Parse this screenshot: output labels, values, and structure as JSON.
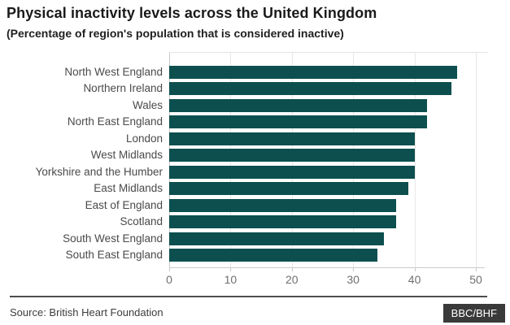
{
  "header": {
    "title": "Physical inactivity levels across the United Kingdom",
    "subtitle": "(Percentage of region's population that is considered inactive)"
  },
  "chart_data": {
    "type": "bar",
    "orientation": "horizontal",
    "title": "Physical inactivity levels across the United Kingdom",
    "subtitle": "(Percentage of region's population that is considered inactive)",
    "xlabel": "",
    "ylabel": "",
    "categories": [
      "North West England",
      "Northern Ireland",
      "Wales",
      "North East England",
      "London",
      "West Midlands",
      "Yorkshire and the Humber",
      "East Midlands",
      "East of England",
      "Scotland",
      "South West England",
      "South East England"
    ],
    "values": [
      47,
      46,
      42,
      42,
      40,
      40,
      40,
      39,
      37,
      37,
      35,
      34
    ],
    "xlim": [
      0,
      50
    ],
    "x_ticks": [
      0,
      10,
      20,
      30,
      40,
      50
    ],
    "grid": true,
    "legend": false,
    "bar_color": "#0d4f4f",
    "gridline_color": "#e8e8e8",
    "axis_color": "#c9c9c9"
  },
  "footer": {
    "source": "Source: British Heart Foundation",
    "badge": "BBC/BHF"
  }
}
